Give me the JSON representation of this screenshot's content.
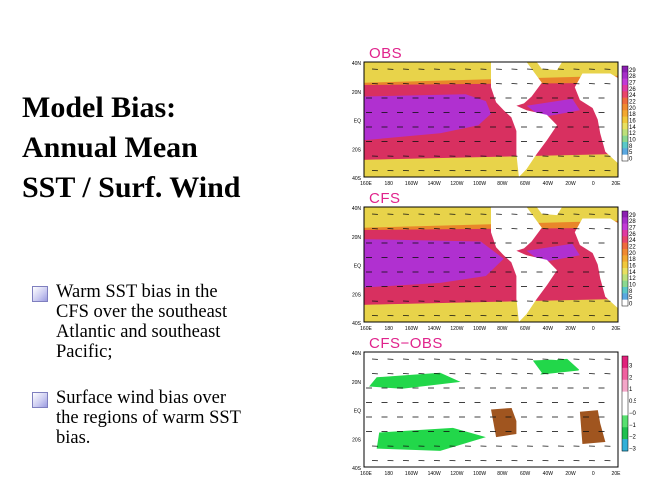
{
  "slide": {
    "title_lines": [
      "Model Bias:",
      "Annual Mean",
      "SST / Surf. Wind"
    ],
    "bullets": [
      [
        "Warm SST bias in the",
        "CFS over the southeast",
        "Atlantic and southeast",
        "Pacific;"
      ],
      [
        "Surface wind bias over",
        "the regions of warm SST",
        "bias."
      ]
    ]
  },
  "maps": {
    "lat_labels": [
      "40N",
      "20N",
      "EQ",
      "20S",
      "40S"
    ],
    "lon_labels": [
      "160E",
      "180",
      "160W",
      "140W",
      "120W",
      "100W",
      "80W",
      "60W",
      "40W",
      "20W",
      "0",
      "20E"
    ],
    "panels": [
      {
        "label": "OBS",
        "colorbar": [
          "29",
          "28",
          "27",
          "26",
          "24",
          "22",
          "20",
          "18",
          "16",
          "14",
          "12",
          "10",
          "8",
          "5",
          "0"
        ]
      },
      {
        "label": "CFS",
        "colorbar": [
          "29",
          "28",
          "27",
          "26",
          "24",
          "22",
          "20",
          "18",
          "16",
          "14",
          "12",
          "10",
          "8",
          "5",
          "0"
        ]
      },
      {
        "label": "CFS−OBS",
        "colorbar": [
          "3",
          "2",
          "1",
          "0.5",
          "−0.5",
          "−1",
          "−2",
          "−3"
        ]
      }
    ],
    "colors": {
      "magenta": "#b030d0",
      "red": "#d83060",
      "orange": "#e9862a",
      "yellow": "#e8d34a",
      "green": "#22d74a",
      "brown": "#a0551f"
    }
  }
}
